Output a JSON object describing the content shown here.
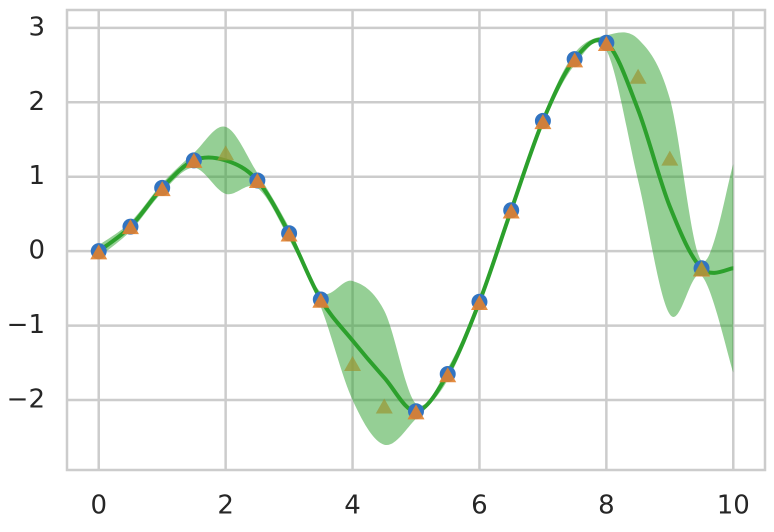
{
  "chart_data": {
    "type": "gp-regression",
    "xlim": [
      -0.5,
      10.5
    ],
    "ylim": [
      -2.94,
      3.24
    ],
    "xticks": [
      0,
      2,
      4,
      6,
      8,
      10
    ],
    "yticks": [
      {
        "value": -2,
        "label": "−2"
      },
      {
        "value": -1,
        "label": "−1"
      },
      0,
      1,
      2,
      3
    ],
    "grid": true,
    "prediction": {
      "color": "#2ca02c",
      "x": [
        0,
        0.5,
        1,
        1.5,
        2,
        2.5,
        3,
        3.5,
        4,
        4.5,
        5,
        5.5,
        6,
        6.5,
        7,
        7.5,
        8,
        8.5,
        9,
        9.5,
        10
      ],
      "mean": [
        0,
        0.33,
        0.85,
        1.22,
        1.22,
        0.95,
        0.24,
        -0.65,
        -1.2,
        -1.7,
        -2.15,
        -1.65,
        -0.68,
        0.55,
        1.75,
        2.58,
        2.8,
        1.9,
        0.6,
        -0.23,
        -0.23
      ],
      "lower": [
        -0.08,
        0.27,
        0.79,
        1.12,
        0.77,
        0.85,
        0.16,
        -0.75,
        -2.0,
        -2.6,
        -2.25,
        -1.73,
        -0.74,
        0.49,
        1.69,
        2.5,
        2.7,
        0.95,
        -0.85,
        -0.33,
        -1.63
      ],
      "upper": [
        0.08,
        0.39,
        0.91,
        1.32,
        1.67,
        1.05,
        0.32,
        -0.55,
        -0.4,
        -0.8,
        -2.05,
        -1.57,
        -0.62,
        0.61,
        1.81,
        2.66,
        2.9,
        2.85,
        2.05,
        -0.13,
        1.17
      ]
    },
    "series": [
      {
        "marker": "circle",
        "color": "#3274c1",
        "x": [
          0,
          0.5,
          1,
          1.5,
          2.5,
          3,
          3.5,
          5,
          5.5,
          6,
          6.5,
          7,
          7.5,
          8,
          9.5
        ],
        "values": [
          0,
          0.33,
          0.85,
          1.22,
          0.95,
          0.24,
          -0.65,
          -2.15,
          -1.65,
          -0.68,
          0.55,
          1.75,
          2.58,
          2.8,
          -0.23
        ]
      },
      {
        "marker": "triangle",
        "color": "#e1812c",
        "x": [
          0,
          0.5,
          1,
          1.5,
          2.5,
          3,
          3.5,
          5,
          5.5,
          6,
          6.5,
          7,
          7.5,
          8,
          9.5
        ],
        "values": [
          -0.03,
          0.31,
          0.82,
          1.2,
          0.93,
          0.21,
          -0.68,
          -2.18,
          -1.68,
          -0.71,
          0.52,
          1.72,
          2.55,
          2.77,
          -0.26
        ]
      },
      {
        "marker": "triangle",
        "color": "#9a9a3a",
        "x": [
          2,
          4,
          4.5,
          8.5,
          9,
          9.5
        ],
        "values": [
          1.3,
          -1.53,
          -2.1,
          2.33,
          1.23,
          -0.25
        ]
      }
    ]
  }
}
